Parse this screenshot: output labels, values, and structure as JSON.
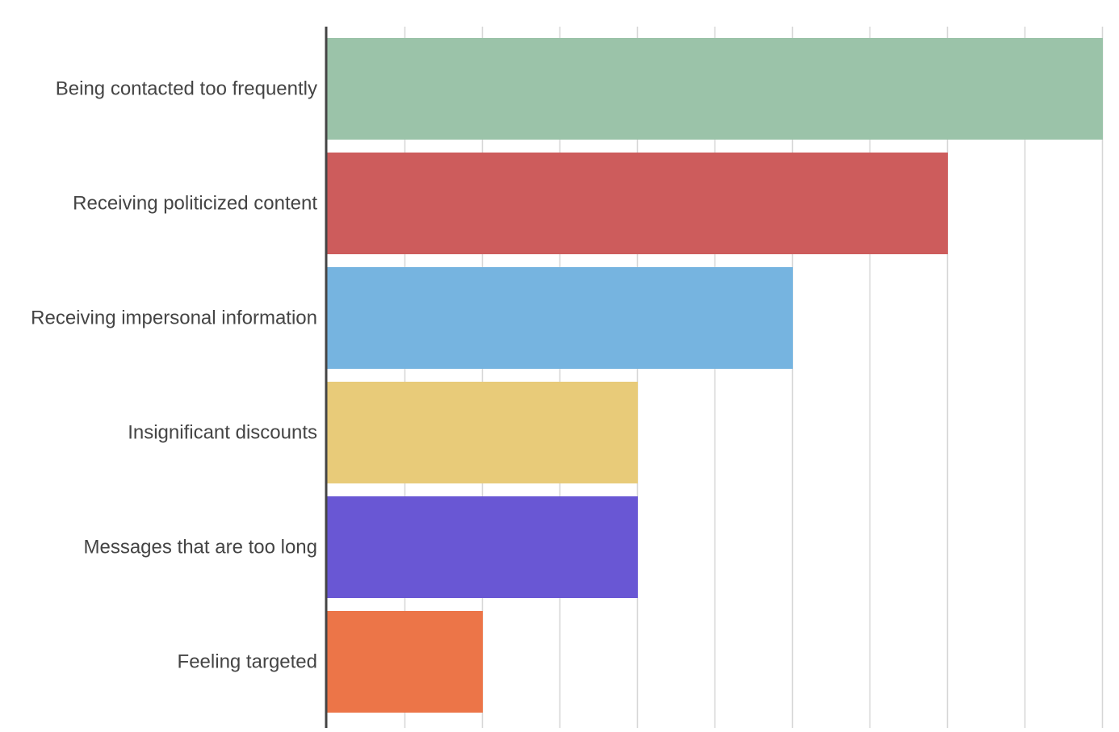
{
  "chart_data": {
    "type": "bar",
    "orientation": "horizontal",
    "title": "",
    "xlabel": "",
    "ylabel": "",
    "categories": [
      "Being contacted too frequently",
      "Receiving politicized content",
      "Receiving impersonal information",
      "Insignificant discounts",
      "Messages that are too long",
      "Feeling targeted"
    ],
    "values": [
      10,
      8,
      6,
      4,
      4,
      2
    ],
    "colors": [
      "#9BC3A9",
      "#CD5C5C",
      "#76B4E0",
      "#E8CB79",
      "#6957D4",
      "#EC7548"
    ],
    "xlim": [
      0,
      10
    ],
    "grid": true,
    "grid_color": "#d6d6d6",
    "axis_color": "#444444",
    "label_color": "#444444",
    "legend": "none"
  }
}
